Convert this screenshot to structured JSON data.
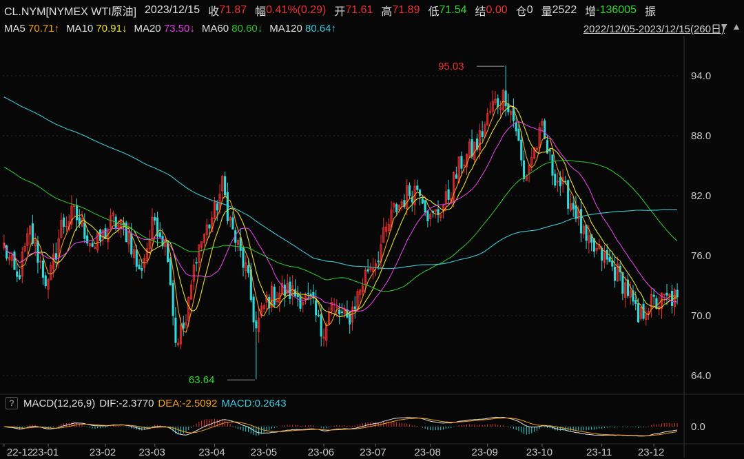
{
  "quote": {
    "symbol": "CL.NYM[NYMEX WTI原油]",
    "date": "2023/12/15",
    "close_label": "收",
    "close": "71.87",
    "change_label": "幅",
    "change": "0.41%(0.29)",
    "open_label": "开",
    "open": "71.61",
    "high_label": "高",
    "high": "71.89",
    "low_label": "低",
    "low": "71.54",
    "settle_label": "结",
    "settle": "0.00",
    "oi_label": "仓",
    "oi": "0",
    "vol_label": "量",
    "vol": "2522",
    "inc_label": "增",
    "inc": "-136005",
    "amp_label": "振"
  },
  "ma_legend": [
    {
      "name": "MA5",
      "value": "70.71",
      "arrow": "↑",
      "color": "#f0a020"
    },
    {
      "name": "MA10",
      "value": "70.91",
      "arrow": "↓",
      "color": "#e8e030"
    },
    {
      "name": "MA20",
      "value": "73.50",
      "arrow": "↓",
      "color": "#e040e0"
    },
    {
      "name": "MA60",
      "value": "80.60",
      "arrow": "↓",
      "color": "#30c030"
    },
    {
      "name": "MA120",
      "value": "80.64",
      "arrow": "↑",
      "color": "#40c8d8"
    }
  ],
  "range_text": "2022/12/05-2023/12/15(260日)",
  "range_icons": "▼ ▲",
  "macd_legend": {
    "help": "?",
    "title": "MACD(12,26,9)",
    "dif_label": "DIF:",
    "dif": "-2.3770",
    "dea_label": "DEA:",
    "dea": "-2.5092",
    "macd_label": "MACD:",
    "macd": "0.2643"
  },
  "colors": {
    "up": "#f03030",
    "down": "#30d8d8",
    "axis": "#c8c8c8",
    "grid": "#2a2a2a",
    "dif": "#e8e8e8",
    "dea": "#f0a020"
  },
  "chart_data": {
    "type": "candlestick",
    "y_ticks": [
      "94.0",
      "88.0",
      "82.0",
      "76.0",
      "70.0",
      "64.0"
    ],
    "y_tick_values": [
      94,
      88,
      82,
      76,
      70,
      64
    ],
    "ylim": [
      62.0,
      98.0
    ],
    "x_ticks": [
      "22-12",
      "23-01",
      "23-02",
      "23-03",
      "23-04",
      "23-05",
      "23-06",
      "23-07",
      "23-08",
      "23-09",
      "23-10",
      "23-11",
      "23-12"
    ],
    "x_tick_index": [
      0,
      17,
      39,
      58,
      81,
      101,
      123,
      143,
      164,
      186,
      207,
      230,
      250
    ],
    "n": 260,
    "annotations": [
      {
        "text": "95.03",
        "index": 193,
        "value": 95.03,
        "color": "#f03030"
      },
      {
        "text": "63.64",
        "index": 97,
        "value": 63.64,
        "color": "#30d830"
      }
    ],
    "anchor_close": [
      [
        0,
        76.9
      ],
      [
        5,
        73.5
      ],
      [
        10,
        78.4
      ],
      [
        17,
        72.9
      ],
      [
        22,
        79.0
      ],
      [
        27,
        80.2
      ],
      [
        35,
        76.8
      ],
      [
        42,
        79.5
      ],
      [
        48,
        78.1
      ],
      [
        52,
        74.2
      ],
      [
        58,
        79.7
      ],
      [
        63,
        76.6
      ],
      [
        66,
        67.5
      ],
      [
        70,
        69.2
      ],
      [
        74,
        76.4
      ],
      [
        81,
        80.4
      ],
      [
        84,
        83.0
      ],
      [
        88,
        78.3
      ],
      [
        93,
        74.6
      ],
      [
        97,
        68.6
      ],
      [
        101,
        71.6
      ],
      [
        107,
        72.5
      ],
      [
        112,
        72.2
      ],
      [
        118,
        71.3
      ],
      [
        122,
        68.4
      ],
      [
        126,
        71.0
      ],
      [
        132,
        69.4
      ],
      [
        136,
        72.0
      ],
      [
        140,
        74.8
      ],
      [
        143,
        75.6
      ],
      [
        150,
        80.5
      ],
      [
        156,
        82.4
      ],
      [
        160,
        83.0
      ],
      [
        164,
        79.5
      ],
      [
        170,
        81.4
      ],
      [
        176,
        85.4
      ],
      [
        182,
        87.1
      ],
      [
        188,
        91.0
      ],
      [
        193,
        92.1
      ],
      [
        197,
        88.8
      ],
      [
        200,
        83.5
      ],
      [
        203,
        86.0
      ],
      [
        207,
        88.4
      ],
      [
        211,
        84.6
      ],
      [
        216,
        82.3
      ],
      [
        220,
        80.5
      ],
      [
        224,
        77.0
      ],
      [
        230,
        76.0
      ],
      [
        236,
        74.2
      ],
      [
        240,
        72.5
      ],
      [
        244,
        69.3
      ],
      [
        247,
        71.0
      ],
      [
        250,
        71.2
      ],
      [
        259,
        71.87
      ]
    ],
    "series": [
      {
        "name": "MA5",
        "color": "#f0a020"
      },
      {
        "name": "MA10",
        "color": "#e8e030"
      },
      {
        "name": "MA20",
        "color": "#e040e0"
      },
      {
        "name": "MA60",
        "color": "#30c030"
      },
      {
        "name": "MA120",
        "color": "#40c8d8"
      }
    ],
    "macd": {
      "ylim": [
        -4.5,
        4.5
      ],
      "zero_label": "0.0",
      "zero_value": 0
    }
  }
}
